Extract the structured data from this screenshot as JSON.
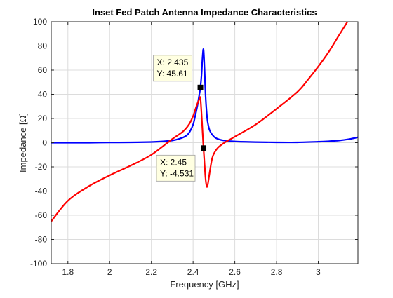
{
  "chart_data": {
    "type": "line",
    "title": "Inset Fed Patch Antenna Impedance Characteristics",
    "xlabel": "Frequency [GHz]",
    "ylabel": "Impedance [Ω]",
    "xlim": [
      1.72,
      3.19
    ],
    "ylim": [
      -100,
      100
    ],
    "xticks": [
      1.8,
      2,
      2.2,
      2.4,
      2.6,
      2.8,
      3
    ],
    "xtick_labels": [
      "1.8",
      "2",
      "2.2",
      "2.4",
      "2.6",
      "2.8",
      "3"
    ],
    "yticks": [
      -100,
      -80,
      -60,
      -40,
      -20,
      0,
      20,
      40,
      60,
      80,
      100
    ],
    "ytick_labels": [
      "-100",
      "-80",
      "-60",
      "-40",
      "-20",
      "0",
      "20",
      "40",
      "60",
      "80",
      "100"
    ],
    "grid": true,
    "legend": "none",
    "series": [
      {
        "color": "#0000ff",
        "x": [
          1.72,
          1.8,
          1.9,
          2.0,
          2.1,
          2.2,
          2.25,
          2.3,
          2.33,
          2.36,
          2.38,
          2.4,
          2.41,
          2.42,
          2.43,
          2.435,
          2.44,
          2.445,
          2.45,
          2.455,
          2.46,
          2.465,
          2.47,
          2.48,
          2.5,
          2.52,
          2.55,
          2.6,
          2.7,
          2.8,
          2.9,
          3.0,
          3.05,
          3.1,
          3.15,
          3.19
        ],
        "y": [
          0,
          0,
          0,
          0.2,
          0.3,
          0.6,
          1,
          1.8,
          3,
          5,
          8,
          15,
          22,
          30,
          40,
          45.61,
          55,
          70,
          77,
          60,
          38,
          25,
          17,
          10,
          5,
          3,
          1.8,
          1,
          0.5,
          0.3,
          0.3,
          0.8,
          1.2,
          1.8,
          3,
          4.5
        ]
      },
      {
        "color": "#ff0000",
        "x": [
          1.72,
          1.8,
          1.9,
          2.0,
          2.1,
          2.2,
          2.3,
          2.35,
          2.38,
          2.4,
          2.41,
          2.42,
          2.43,
          2.435,
          2.44,
          2.445,
          2.45,
          2.455,
          2.46,
          2.465,
          2.47,
          2.48,
          2.49,
          2.5,
          2.52,
          2.55,
          2.58,
          2.6,
          2.7,
          2.8,
          2.9,
          2.95,
          3.0,
          3.05,
          3.1,
          3.14
        ],
        "y": [
          -65,
          -48,
          -36,
          -27,
          -19,
          -10,
          3,
          9,
          15,
          22,
          27,
          32,
          36,
          37,
          25,
          10,
          -4.531,
          -18,
          -30,
          -36,
          -35,
          -24,
          -14,
          -9,
          -4,
          0,
          3,
          5,
          15,
          28,
          42,
          52,
          63,
          75,
          89,
          100
        ]
      }
    ],
    "annotations": [
      {
        "x": 2.435,
        "y": 45.61,
        "lines": [
          "X: 2.435",
          "Y: 45.61"
        ]
      },
      {
        "x": 2.45,
        "y": -4.531,
        "lines": [
          "X: 2.45",
          "Y: -4.531"
        ]
      }
    ]
  }
}
